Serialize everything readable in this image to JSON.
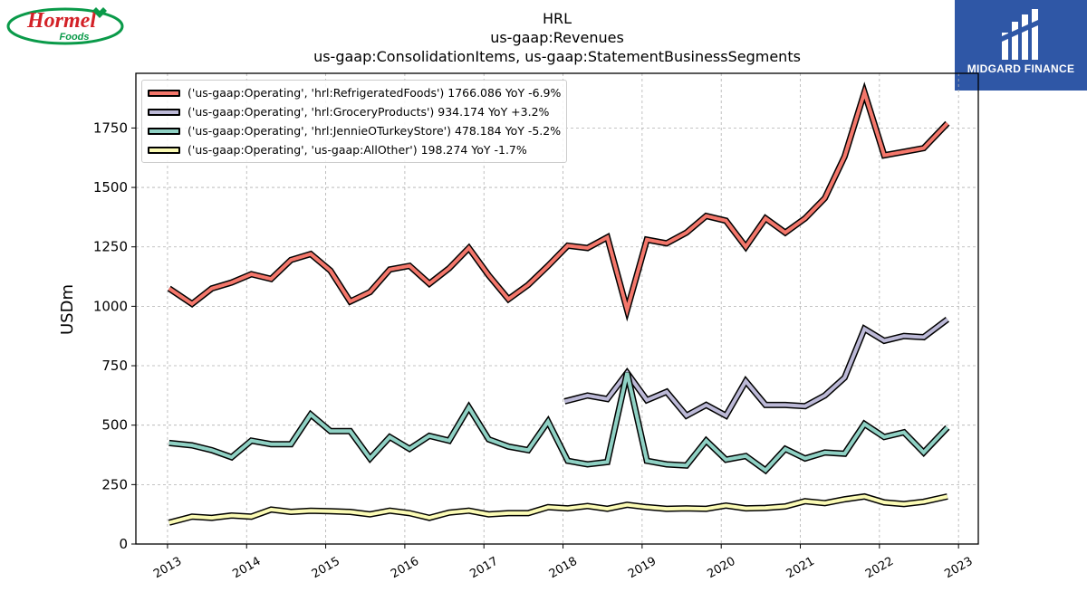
{
  "logos": {
    "left": {
      "word1": "Hormel",
      "word2": "Foods",
      "color": "#d32127",
      "ring": "#0a9a49"
    },
    "right": {
      "name": "MIDGARD FINANCE",
      "bg": "#2f57a6"
    }
  },
  "chart_data": {
    "type": "line",
    "title_lines": [
      "HRL",
      "us-gaap:Revenues",
      "us-gaap:ConsolidationItems, us-gaap:StatementBusinessSegments"
    ],
    "xlabel": "",
    "ylabel": "USDm",
    "xlim": [
      2012.6,
      2023.25
    ],
    "ylim": [
      0,
      1980
    ],
    "xticks": [
      2013,
      2014,
      2015,
      2016,
      2017,
      2018,
      2019,
      2020,
      2021,
      2022,
      2023
    ],
    "yticks": [
      0,
      250,
      500,
      750,
      1000,
      1250,
      1500,
      1750
    ],
    "grid": true,
    "legend_position": "upper-left",
    "series": [
      {
        "name": "('us-gaap:Operating', 'hrl:RefrigeratedFoods') 1766.086 YoY -6.9%",
        "color": "#f4776b",
        "points": [
          [
            2013.02,
            1075
          ],
          [
            2013.31,
            1010
          ],
          [
            2013.56,
            1075
          ],
          [
            2013.81,
            1100
          ],
          [
            2014.06,
            1135
          ],
          [
            2014.31,
            1115
          ],
          [
            2014.56,
            1195
          ],
          [
            2014.81,
            1220
          ],
          [
            2015.06,
            1150
          ],
          [
            2015.31,
            1020
          ],
          [
            2015.56,
            1060
          ],
          [
            2015.81,
            1155
          ],
          [
            2016.06,
            1170
          ],
          [
            2016.31,
            1095
          ],
          [
            2016.56,
            1160
          ],
          [
            2016.81,
            1245
          ],
          [
            2017.06,
            1130
          ],
          [
            2017.31,
            1030
          ],
          [
            2017.56,
            1090
          ],
          [
            2017.81,
            1170
          ],
          [
            2018.06,
            1255
          ],
          [
            2018.31,
            1245
          ],
          [
            2018.56,
            1290
          ],
          [
            2018.81,
            985
          ],
          [
            2019.06,
            1280
          ],
          [
            2019.31,
            1265
          ],
          [
            2019.56,
            1310
          ],
          [
            2019.81,
            1380
          ],
          [
            2020.06,
            1360
          ],
          [
            2020.31,
            1250
          ],
          [
            2020.56,
            1370
          ],
          [
            2020.81,
            1310
          ],
          [
            2021.06,
            1370
          ],
          [
            2021.31,
            1455
          ],
          [
            2021.56,
            1630
          ],
          [
            2021.81,
            1900
          ],
          [
            2022.06,
            1635
          ],
          [
            2022.31,
            1650
          ],
          [
            2022.56,
            1665
          ],
          [
            2022.86,
            1770
          ]
        ]
      },
      {
        "name": "('us-gaap:Operating', 'hrl:GroceryProducts') 934.174 YoY +3.2%",
        "color": "#bcb9d7",
        "points": [
          [
            2018.02,
            600
          ],
          [
            2018.31,
            625
          ],
          [
            2018.56,
            610
          ],
          [
            2018.81,
            720
          ],
          [
            2019.06,
            605
          ],
          [
            2019.31,
            640
          ],
          [
            2019.56,
            540
          ],
          [
            2019.81,
            585
          ],
          [
            2020.06,
            540
          ],
          [
            2020.31,
            685
          ],
          [
            2020.56,
            585
          ],
          [
            2020.81,
            585
          ],
          [
            2021.06,
            580
          ],
          [
            2021.31,
            625
          ],
          [
            2021.56,
            700
          ],
          [
            2021.81,
            905
          ],
          [
            2022.06,
            855
          ],
          [
            2022.31,
            875
          ],
          [
            2022.56,
            870
          ],
          [
            2022.86,
            945
          ]
        ]
      },
      {
        "name": "('us-gaap:Operating', 'hrl:JennieOTurkeyStore') 478.184 YoY -5.2%",
        "color": "#8fd1c4",
        "points": [
          [
            2013.02,
            425
          ],
          [
            2013.31,
            415
          ],
          [
            2013.56,
            395
          ],
          [
            2013.81,
            365
          ],
          [
            2014.06,
            435
          ],
          [
            2014.31,
            420
          ],
          [
            2014.56,
            420
          ],
          [
            2014.81,
            545
          ],
          [
            2015.06,
            475
          ],
          [
            2015.31,
            475
          ],
          [
            2015.56,
            360
          ],
          [
            2015.81,
            450
          ],
          [
            2016.06,
            400
          ],
          [
            2016.31,
            455
          ],
          [
            2016.56,
            435
          ],
          [
            2016.81,
            575
          ],
          [
            2017.06,
            440
          ],
          [
            2017.31,
            410
          ],
          [
            2017.56,
            395
          ],
          [
            2017.81,
            515
          ],
          [
            2018.06,
            350
          ],
          [
            2018.31,
            335
          ],
          [
            2018.56,
            345
          ],
          [
            2018.81,
            720
          ],
          [
            2019.06,
            350
          ],
          [
            2019.31,
            335
          ],
          [
            2019.56,
            330
          ],
          [
            2019.81,
            435
          ],
          [
            2020.06,
            355
          ],
          [
            2020.31,
            370
          ],
          [
            2020.56,
            310
          ],
          [
            2020.81,
            400
          ],
          [
            2021.06,
            360
          ],
          [
            2021.31,
            385
          ],
          [
            2021.56,
            380
          ],
          [
            2021.81,
            505
          ],
          [
            2022.06,
            450
          ],
          [
            2022.31,
            470
          ],
          [
            2022.56,
            385
          ],
          [
            2022.86,
            490
          ]
        ]
      },
      {
        "name": "('us-gaap:Operating', 'us-gaap:AllOther') 198.274 YoY -1.7%",
        "color": "#fbfbb5",
        "points": [
          [
            2013.02,
            90
          ],
          [
            2013.31,
            115
          ],
          [
            2013.56,
            110
          ],
          [
            2013.81,
            120
          ],
          [
            2014.06,
            115
          ],
          [
            2014.31,
            145
          ],
          [
            2014.56,
            135
          ],
          [
            2014.81,
            140
          ],
          [
            2015.06,
            138
          ],
          [
            2015.31,
            135
          ],
          [
            2015.56,
            125
          ],
          [
            2015.81,
            140
          ],
          [
            2016.06,
            130
          ],
          [
            2016.31,
            110
          ],
          [
            2016.56,
            132
          ],
          [
            2016.81,
            140
          ],
          [
            2017.06,
            125
          ],
          [
            2017.31,
            130
          ],
          [
            2017.56,
            130
          ],
          [
            2017.81,
            155
          ],
          [
            2018.06,
            150
          ],
          [
            2018.31,
            160
          ],
          [
            2018.56,
            148
          ],
          [
            2018.81,
            165
          ],
          [
            2019.06,
            155
          ],
          [
            2019.31,
            148
          ],
          [
            2019.56,
            150
          ],
          [
            2019.81,
            148
          ],
          [
            2020.06,
            162
          ],
          [
            2020.31,
            150
          ],
          [
            2020.56,
            152
          ],
          [
            2020.81,
            158
          ],
          [
            2021.06,
            180
          ],
          [
            2021.31,
            172
          ],
          [
            2021.56,
            188
          ],
          [
            2021.81,
            200
          ],
          [
            2022.06,
            175
          ],
          [
            2022.31,
            168
          ],
          [
            2022.56,
            178
          ],
          [
            2022.86,
            200
          ]
        ]
      }
    ]
  }
}
